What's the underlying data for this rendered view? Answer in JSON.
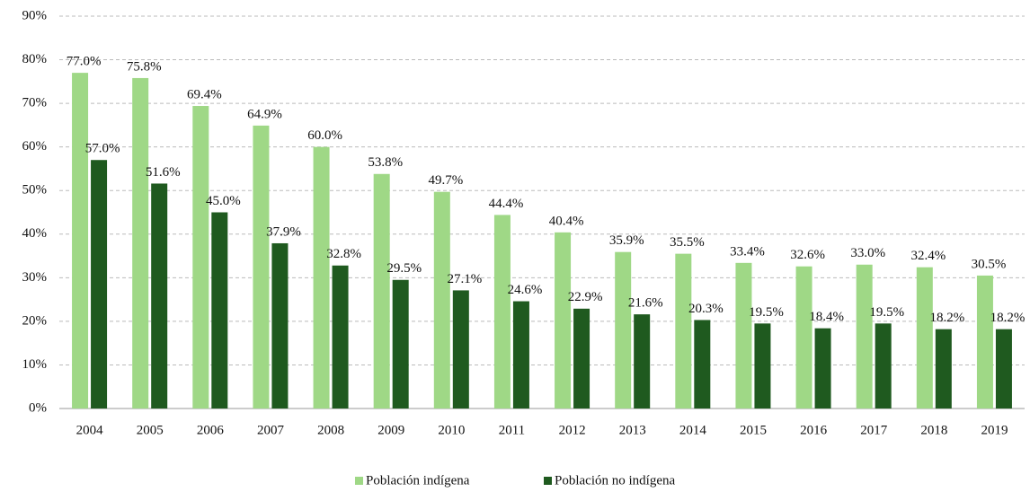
{
  "chart_data": {
    "type": "bar",
    "categories": [
      "2004",
      "2005",
      "2006",
      "2007",
      "2008",
      "2009",
      "2010",
      "2011",
      "2012",
      "2013",
      "2014",
      "2015",
      "2016",
      "2017",
      "2018",
      "2019"
    ],
    "series": [
      {
        "name": "Población indígena",
        "color": "#9fd886",
        "values": [
          77.0,
          75.8,
          69.4,
          64.9,
          60.0,
          53.8,
          49.7,
          44.4,
          40.4,
          35.9,
          35.5,
          33.4,
          32.6,
          33.0,
          32.4,
          30.5
        ],
        "value_labels": [
          "77.0%",
          "75.8%",
          "69.4%",
          "64.9%",
          "60.0%",
          "53.8%",
          "49.7%",
          "44.4%",
          "40.4%",
          "35.9%",
          "35.5%",
          "33.4%",
          "32.6%",
          "33.0%",
          "32.4%",
          "30.5%"
        ]
      },
      {
        "name": "Población no indígena",
        "color": "#1f5a1f",
        "values": [
          57.0,
          51.6,
          45.0,
          37.9,
          32.8,
          29.5,
          27.1,
          24.6,
          22.9,
          21.6,
          20.3,
          19.5,
          18.4,
          19.5,
          18.2,
          18.2
        ],
        "value_labels": [
          "57.0%",
          "51.6%",
          "45.0%",
          "37.9%",
          "32.8%",
          "29.5%",
          "27.1%",
          "24.6%",
          "22.9%",
          "21.6%",
          "20.3%",
          "19.5%",
          "18.4%",
          "19.5%",
          "18.2%",
          "18.2%"
        ]
      }
    ],
    "ylim": [
      0,
      90
    ],
    "yticks": [
      {
        "value": 0,
        "label": "0%"
      },
      {
        "value": 10,
        "label": "10%"
      },
      {
        "value": 20,
        "label": "20%"
      },
      {
        "value": 30,
        "label": "30%"
      },
      {
        "value": 40,
        "label": "40%"
      },
      {
        "value": 50,
        "label": "50%"
      },
      {
        "value": 60,
        "label": "60%"
      },
      {
        "value": 70,
        "label": "70%"
      },
      {
        "value": 80,
        "label": "80%"
      },
      {
        "value": 90,
        "label": "90%"
      }
    ],
    "grid": true,
    "legend": "bottom"
  }
}
